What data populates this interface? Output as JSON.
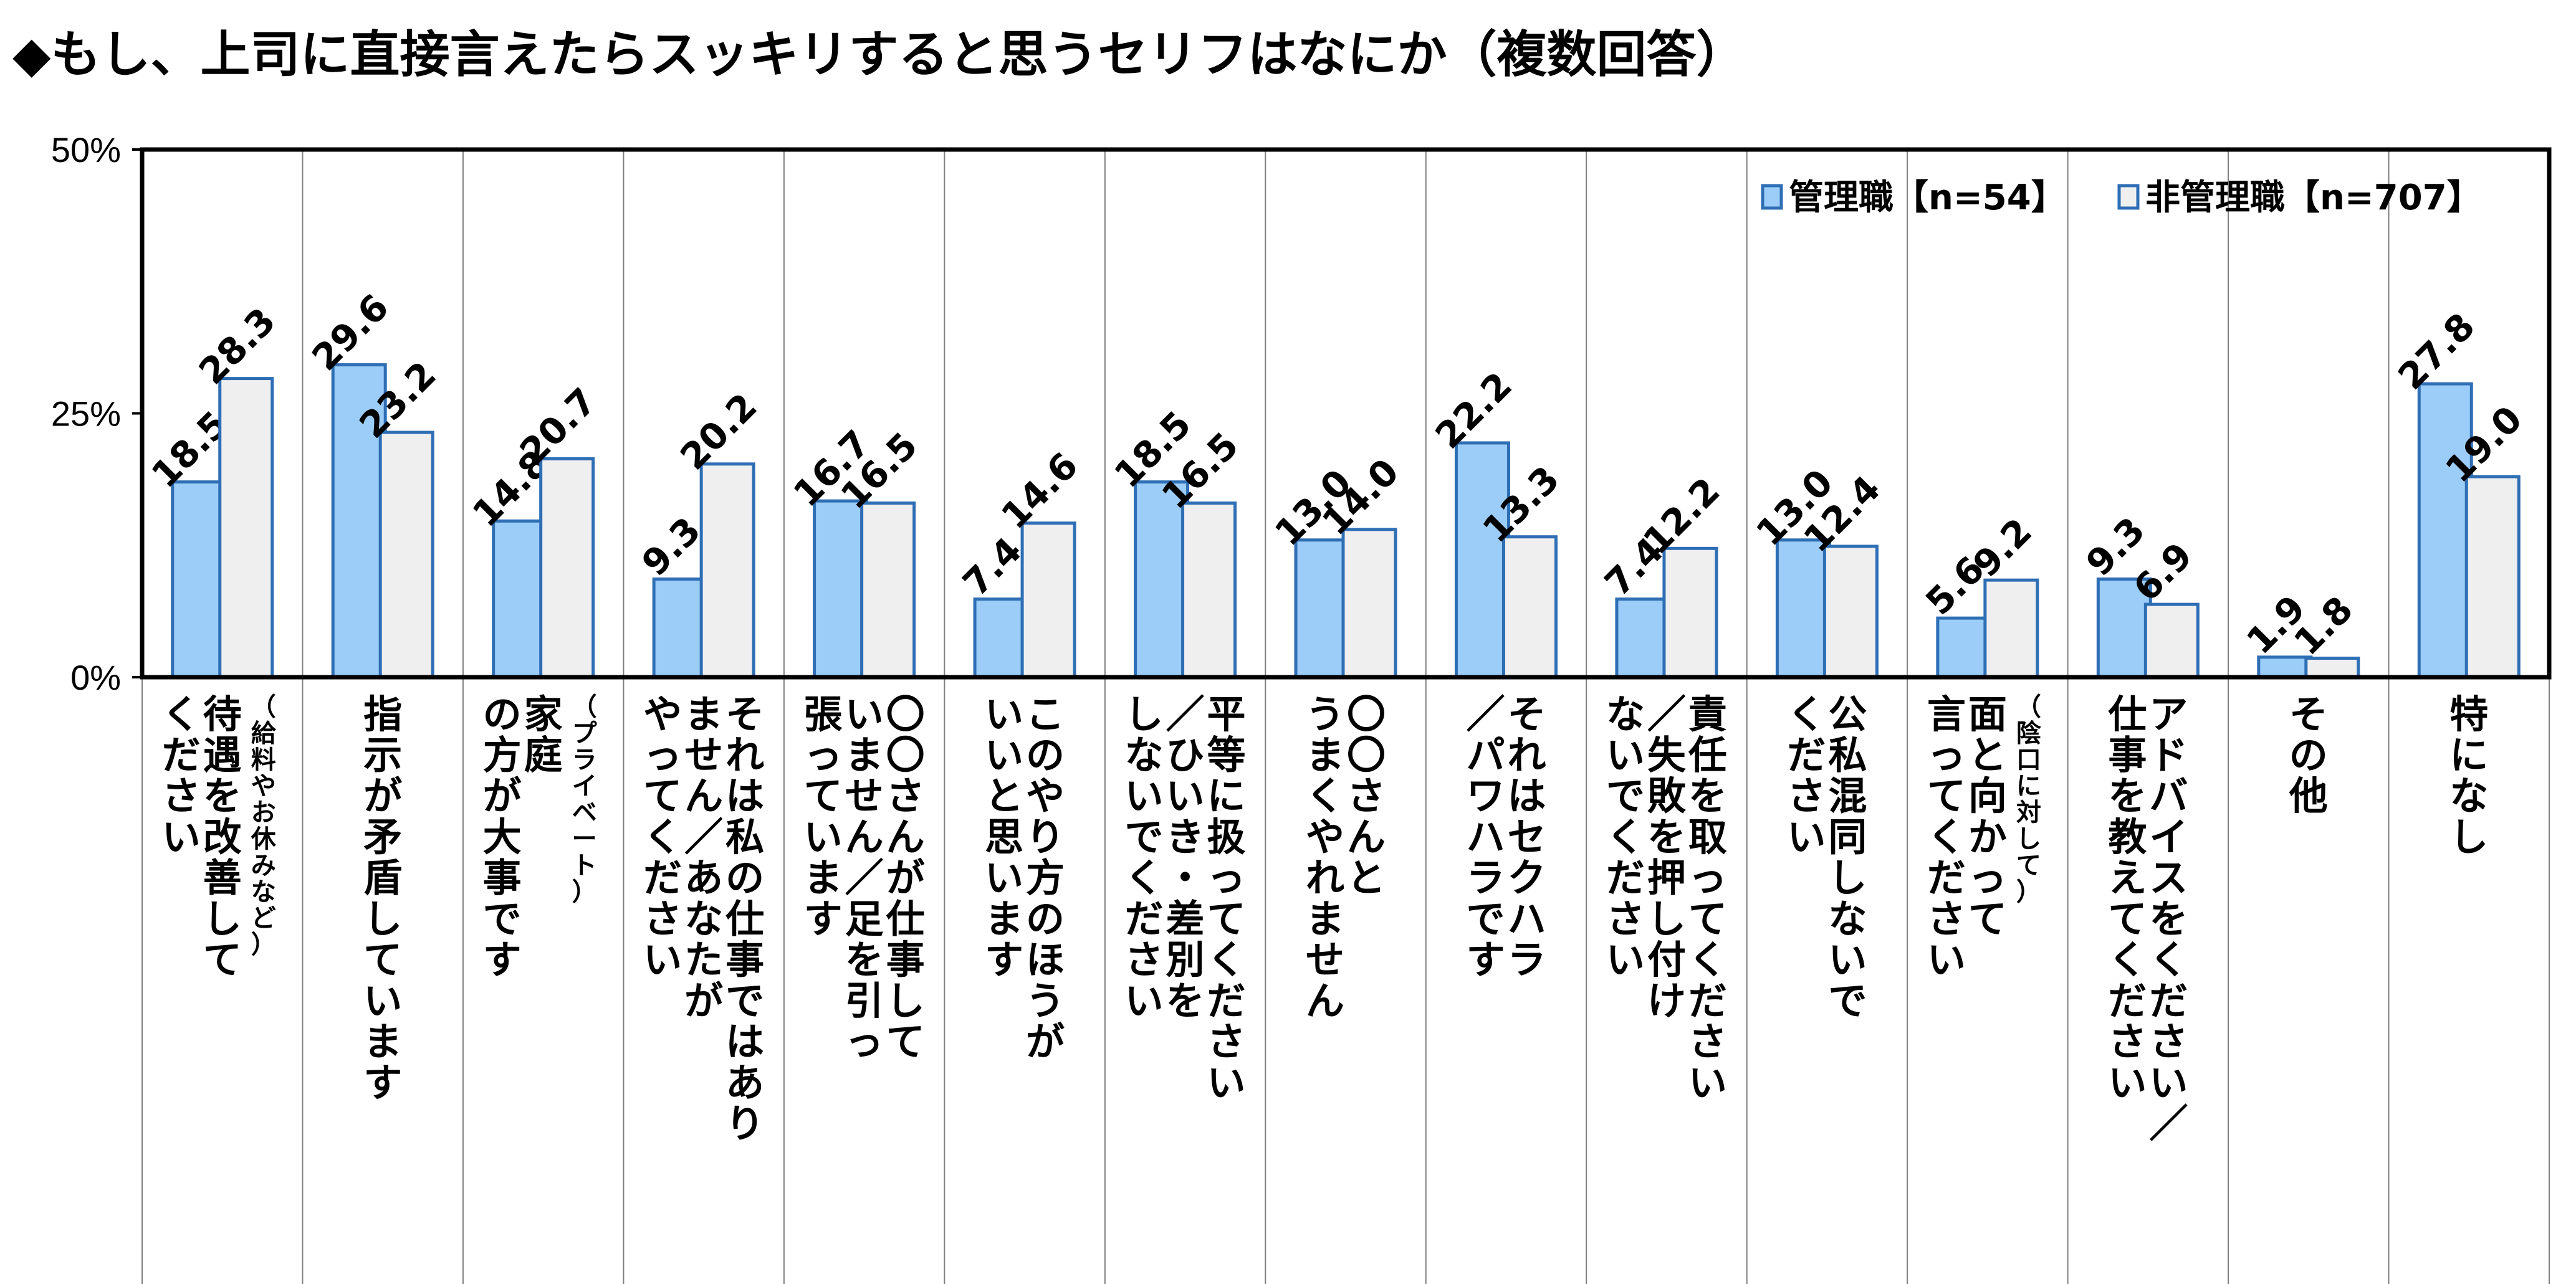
{
  "title": "◆もし、上司に直接言えたらスッキリすると思うセリフはなにか（複数回答）",
  "colors": {
    "manager": "#9CCDF8",
    "nonmanager": "#EFEFEF",
    "bar_stroke": "#2E6EB5",
    "axis": "#000000"
  },
  "chart_data": {
    "type": "bar",
    "ylim": [
      0,
      50
    ],
    "yticks": [
      "0%",
      "25%",
      "50%"
    ],
    "legend_position": "top-right",
    "grid": false,
    "categories": [
      {
        "lines": [
          "待遇を改善して",
          "ください"
        ],
        "small": "（給料やお休みなど）"
      },
      {
        "lines": [
          "指示が矛盾しています"
        ],
        "small": ""
      },
      {
        "lines": [
          "家庭",
          "の方が大事です"
        ],
        "small": "（プライベート）"
      },
      {
        "lines": [
          "それは私の仕事ではあり",
          "ません／あなたが",
          "やってください"
        ],
        "small": ""
      },
      {
        "lines": [
          "〇〇さんが仕事して",
          "いません／足を引っ",
          "張っています"
        ],
        "small": ""
      },
      {
        "lines": [
          "このやり方のほうが",
          "いいと思います"
        ],
        "small": ""
      },
      {
        "lines": [
          "平等に扱ってください",
          "／ひいき・差別を",
          "しないでください"
        ],
        "small": ""
      },
      {
        "lines": [
          "〇〇さんと",
          "うまくやれません"
        ],
        "small": ""
      },
      {
        "lines": [
          "それはセクハラ",
          "／パワハラです"
        ],
        "small": ""
      },
      {
        "lines": [
          "責任を取ってください",
          "／失敗を押し付け",
          "ないでください"
        ],
        "small": ""
      },
      {
        "lines": [
          "公私混同しないで",
          "ください"
        ],
        "small": ""
      },
      {
        "lines": [
          "面と向かって",
          "言ってください"
        ],
        "small": "（陰口に対して）"
      },
      {
        "lines": [
          "アドバイスをください／",
          "仕事を教えてください"
        ],
        "small": ""
      },
      {
        "lines": [
          "その他"
        ],
        "small": ""
      },
      {
        "lines": [
          "特になし"
        ],
        "small": ""
      }
    ],
    "series": [
      {
        "name": "管理職【n=54】",
        "values": [
          18.5,
          29.6,
          14.8,
          9.3,
          16.7,
          7.4,
          18.5,
          13.0,
          22.2,
          7.4,
          13.0,
          5.6,
          9.3,
          1.9,
          27.8
        ]
      },
      {
        "name": "非管理職【n=707】",
        "values": [
          28.3,
          23.2,
          20.7,
          20.2,
          16.5,
          14.6,
          16.5,
          14.0,
          13.3,
          12.2,
          12.4,
          9.2,
          6.9,
          1.8,
          19.0
        ]
      }
    ],
    "value_labels": [
      [
        "18.5",
        "29.6",
        "14.8",
        "9.3",
        "16.7",
        "7.4",
        "18.5",
        "13.0",
        "22.2",
        "7.4",
        "13.0",
        "5.6",
        "9.3",
        "1.9",
        "27.8"
      ],
      [
        "28.3",
        "23.2",
        "20.7",
        "20.2",
        "16.5",
        "14.6",
        "16.5",
        "14.0",
        "13.3",
        "12.2",
        "12.4",
        "9.2",
        "6.9",
        "1.8",
        "19.0"
      ]
    ]
  }
}
